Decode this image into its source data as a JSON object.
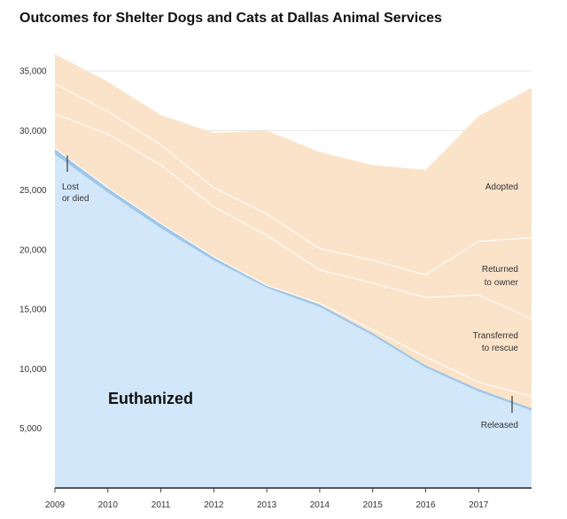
{
  "title": "Outcomes for Shelter Dogs and Cats at Dallas Animal Services",
  "chart_data": {
    "type": "area",
    "stacked": true,
    "x": [
      "2009",
      "2010",
      "2011",
      "2012",
      "2013",
      "2014",
      "2015",
      "2016",
      "2017",
      "2018"
    ],
    "x_tick_labels": [
      "2009",
      "2010",
      "2011",
      "2012",
      "2013",
      "2014",
      "2015",
      "2016",
      "2017"
    ],
    "y_ticks": [
      5000,
      10000,
      15000,
      20000,
      25000,
      30000,
      35000
    ],
    "y_tick_labels": [
      "5,000",
      "10,000",
      "15,000",
      "20,000",
      "25,000",
      "30,000",
      "35,000"
    ],
    "ylim": [
      0,
      36500
    ],
    "grid": true,
    "series": [
      {
        "name": "Euthanized",
        "color": "#d3e7fb",
        "values": [
          28000,
          24800,
          21800,
          19100,
          16800,
          15200,
          12800,
          10100,
          8100,
          6500
        ]
      },
      {
        "name": "Lost or died",
        "color": "#9ec6e8",
        "values": [
          500,
          400,
          400,
          300,
          200,
          200,
          200,
          200,
          200,
          200
        ]
      },
      {
        "name": "Released",
        "color": "#fbe3c9",
        "values": [
          0,
          0,
          0,
          0,
          0,
          100,
          300,
          700,
          600,
          1000
        ]
      },
      {
        "name": "Transferred to rescue",
        "color": "#fbe3c9",
        "values": [
          2900,
          4500,
          4900,
          4200,
          4200,
          2800,
          3900,
          5000,
          7300,
          6500
        ]
      },
      {
        "name": "Returned to owner",
        "color": "#fbe3c9",
        "values": [
          2500,
          1900,
          1700,
          1600,
          1800,
          1800,
          1900,
          1900,
          4500,
          6800
        ]
      },
      {
        "name": "Adopted",
        "color": "#fbe3c9",
        "values": [
          2500,
          2500,
          2500,
          4600,
          7000,
          8100,
          8000,
          8800,
          10500,
          12600
        ]
      }
    ],
    "annotations": {
      "lost_line1": "Lost",
      "lost_line2": "or died",
      "euthanized": "Euthanized",
      "adopted": "Adopted",
      "returned_line1": "Returned",
      "returned_line2": "to owner",
      "transferred_line1": "Transferred",
      "transferred_line2": "to rescue",
      "released": "Released"
    }
  }
}
